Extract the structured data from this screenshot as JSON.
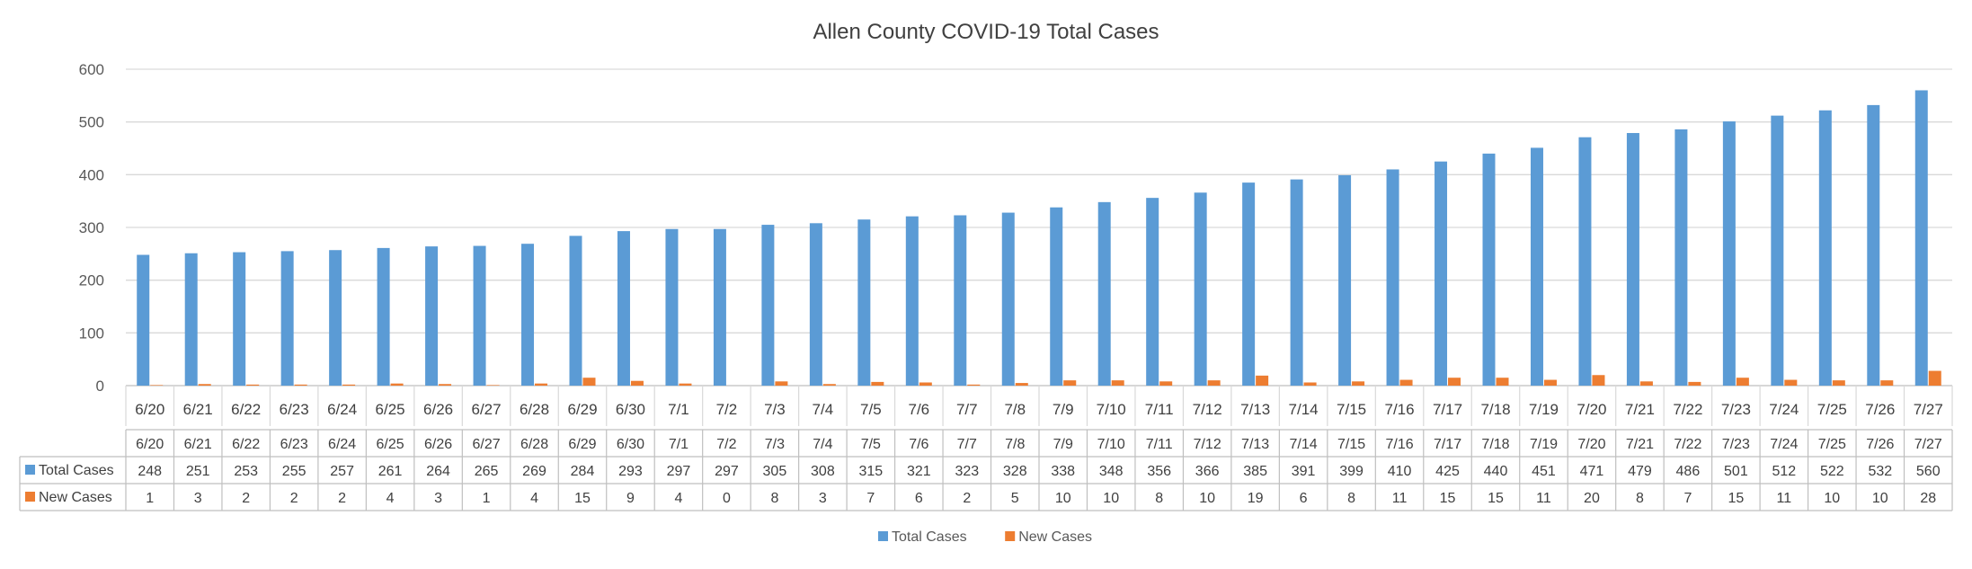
{
  "chart_data": {
    "type": "bar",
    "title": "Allen County COVID-19 Total Cases",
    "xlabel": "",
    "ylabel": "",
    "ylim": [
      0,
      600
    ],
    "yticks": [
      0,
      100,
      200,
      300,
      400,
      500,
      600
    ],
    "grid": true,
    "legend_position": "bottom",
    "categories": [
      "6/20",
      "6/21",
      "6/22",
      "6/23",
      "6/24",
      "6/25",
      "6/26",
      "6/27",
      "6/28",
      "6/29",
      "6/30",
      "7/1",
      "7/2",
      "7/3",
      "7/4",
      "7/5",
      "7/6",
      "7/7",
      "7/8",
      "7/9",
      "7/10",
      "7/11",
      "7/12",
      "7/13",
      "7/14",
      "7/15",
      "7/16",
      "7/17",
      "7/18",
      "7/19",
      "7/20",
      "7/21",
      "7/22",
      "7/23",
      "7/24",
      "7/25",
      "7/26",
      "7/27"
    ],
    "series": [
      {
        "name": "Total Cases",
        "color": "#5B9BD5",
        "values": [
          248,
          251,
          253,
          255,
          257,
          261,
          264,
          265,
          269,
          284,
          293,
          297,
          297,
          305,
          308,
          315,
          321,
          323,
          328,
          338,
          348,
          356,
          366,
          385,
          391,
          399,
          410,
          425,
          440,
          451,
          471,
          479,
          486,
          501,
          512,
          522,
          532,
          560
        ]
      },
      {
        "name": "New Cases",
        "color": "#ED7D31",
        "values": [
          1,
          3,
          2,
          2,
          2,
          4,
          3,
          1,
          4,
          15,
          9,
          4,
          0,
          8,
          3,
          7,
          6,
          2,
          5,
          10,
          10,
          8,
          10,
          19,
          6,
          8,
          11,
          15,
          15,
          11,
          20,
          8,
          7,
          15,
          11,
          10,
          10,
          28
        ]
      }
    ],
    "data_table": true
  }
}
